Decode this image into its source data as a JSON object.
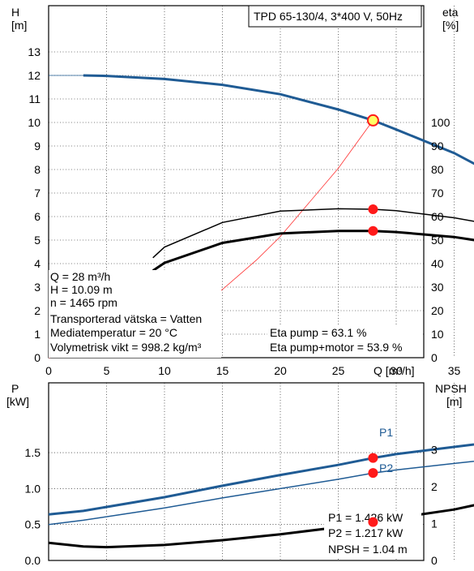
{
  "header": {
    "title": "TPD 65-130/4, 3*400 V, 50Hz"
  },
  "top_chart": {
    "y_left_label": "H",
    "y_left_unit": "[m]",
    "y_right_label": "eta",
    "y_right_unit": "[%]",
    "x_label": "Q [m³/h]",
    "y_left_ticks": [
      "0",
      "1",
      "2",
      "3",
      "4",
      "5",
      "6",
      "7",
      "8",
      "9",
      "10",
      "11",
      "12",
      "13"
    ],
    "y_right_ticks": [
      "0",
      "10",
      "20",
      "30",
      "40",
      "50",
      "60",
      "70",
      "80",
      "90",
      "100"
    ],
    "x_ticks": [
      "0",
      "5",
      "10",
      "15",
      "20",
      "25",
      "30",
      "35"
    ],
    "info_lines": [
      "Q = 28 m³/h",
      "H = 10.09 m",
      "n = 1465 rpm",
      "Transporterad vätska = Vatten",
      "Mediatemperatur = 20 °C",
      "Volymetrisk vikt = 998.2 kg/m³"
    ],
    "eta_lines": [
      "Eta pump = 63.1 %",
      "Eta pump+motor = 53.9 %"
    ]
  },
  "bottom_chart": {
    "y_left_label": "P",
    "y_left_unit": "[kW]",
    "y_right_label": "NPSH",
    "y_right_unit": "[m]",
    "y_left_ticks": [
      "0.0",
      "0.5",
      "1.0",
      "1.5"
    ],
    "y_right_ticks": [
      "0",
      "1",
      "2",
      "3"
    ],
    "series_labels": {
      "p1": "P1",
      "p2": "P2"
    },
    "info_lines": [
      "P1 = 1.426 kW",
      "P2 = 1.217 kW",
      "NPSH = 1.04 m"
    ]
  },
  "colors": {
    "head": "#1f5b94",
    "p1": "#1f5b94",
    "p2": "#1f5b94",
    "eta": "#000000",
    "npsh": "#000000",
    "system": "#ff3030",
    "marker": "#ff1a1a",
    "marker_duty": "#ffff66"
  },
  "chart_data": [
    {
      "type": "line",
      "xlabel": "Q [m³/h]",
      "ylabel": "H [m]",
      "y2label": "eta [%]",
      "xlim": [
        0,
        37.5
      ],
      "ylim": [
        0,
        14
      ],
      "y2lim": [
        0,
        100
      ],
      "duty_point": {
        "x": 28,
        "y": 10.09
      },
      "series": [
        {
          "name": "H",
          "axis": "left",
          "x": [
            3,
            5,
            10,
            15,
            20,
            25,
            28,
            30,
            35,
            39
          ],
          "y": [
            12.0,
            11.98,
            11.85,
            11.6,
            11.2,
            10.55,
            10.09,
            9.7,
            8.7,
            7.65
          ]
        },
        {
          "name": "Eta pump",
          "axis": "right",
          "x": [
            9,
            10,
            15,
            20,
            25,
            28,
            30,
            35,
            39
          ],
          "y": [
            42.5,
            47,
            57.5,
            62.3,
            63.3,
            63.1,
            62.5,
            59.5,
            56
          ]
        },
        {
          "name": "Eta pump+motor",
          "axis": "right",
          "x": [
            9,
            10,
            15,
            20,
            25,
            28,
            30,
            35,
            39
          ],
          "y": [
            37,
            40.3,
            48.8,
            52.8,
            53.9,
            53.9,
            53.4,
            51.3,
            48.3
          ]
        },
        {
          "name": "System",
          "axis": "left",
          "x": [
            0,
            5,
            10,
            15,
            18,
            20,
            25,
            28
          ],
          "y": [
            0,
            0.32,
            1.29,
            2.9,
            4.18,
            5.15,
            8.05,
            10.09
          ]
        }
      ]
    },
    {
      "type": "line",
      "xlabel": "Q [m³/h]",
      "ylabel": "P [kW]",
      "y2label": "NPSH [m]",
      "xlim": [
        0,
        37.5
      ],
      "ylim": [
        0,
        2.0
      ],
      "y2lim": [
        0,
        4
      ],
      "series": [
        {
          "name": "P1",
          "axis": "left",
          "x": [
            0,
            3,
            10,
            15,
            20,
            25,
            28,
            30,
            35,
            39
          ],
          "y": [
            0.64,
            0.69,
            0.88,
            1.04,
            1.19,
            1.33,
            1.426,
            1.48,
            1.58,
            1.66
          ]
        },
        {
          "name": "P2",
          "axis": "left",
          "x": [
            0,
            3,
            10,
            15,
            20,
            25,
            28,
            30,
            35,
            39
          ],
          "y": [
            0.5,
            0.56,
            0.73,
            0.87,
            1.0,
            1.13,
            1.217,
            1.26,
            1.35,
            1.42
          ]
        },
        {
          "name": "NPSH",
          "axis": "right",
          "x": [
            0,
            3,
            5,
            10,
            15,
            20,
            25,
            28,
            30,
            35,
            39
          ],
          "y": [
            0.48,
            0.38,
            0.36,
            0.42,
            0.55,
            0.71,
            0.9,
            1.04,
            1.15,
            1.38,
            1.65
          ]
        }
      ],
      "markers": [
        {
          "series": "P1",
          "x": 28,
          "y": 1.426
        },
        {
          "series": "P2",
          "x": 28,
          "y": 1.217
        },
        {
          "series": "NPSH",
          "x": 28,
          "y": 1.04
        }
      ]
    }
  ]
}
